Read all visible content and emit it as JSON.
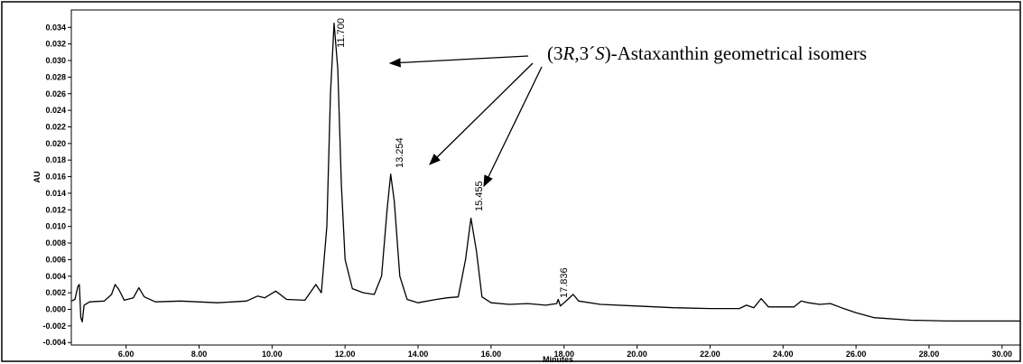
{
  "chart_data": {
    "type": "line",
    "xlabel": "Minutes",
    "ylabel": "AU",
    "annotation": [
      "(3",
      "R",
      ",3´",
      "S",
      ")-Astaxanthin geometrical isomers"
    ],
    "peak_labels": [
      "11.700",
      "13.254",
      "15.455",
      "17.836"
    ],
    "color": "#000000",
    "xlim": [
      4.5,
      30.5
    ],
    "ylim": [
      -0.0043,
      0.0361
    ],
    "xticks": [
      {
        "value": 6,
        "label": "6.00"
      },
      {
        "value": 8,
        "label": "8.00"
      },
      {
        "value": 10,
        "label": "10.00"
      },
      {
        "value": 12,
        "label": "12.00"
      },
      {
        "value": 14,
        "label": "14.00"
      },
      {
        "value": 16,
        "label": "16.00"
      },
      {
        "value": 18,
        "label": "18.00"
      },
      {
        "value": 20,
        "label": "20.00"
      },
      {
        "value": 22,
        "label": "22.00"
      },
      {
        "value": 24,
        "label": "24.00"
      },
      {
        "value": 26,
        "label": "26.00"
      },
      {
        "value": 28,
        "label": "28.00"
      },
      {
        "value": 30,
        "label": "30.00"
      }
    ],
    "yticks": [
      -0.004,
      -0.002,
      {
        "value": 0,
        "label": "0.000"
      },
      0.002,
      0.004,
      0.006,
      0.008,
      {
        "value": 0.01,
        "label": "0.010"
      },
      0.012,
      0.014,
      0.016,
      0.018,
      {
        "value": 0.02,
        "label": "0.020"
      },
      0.022,
      0.024,
      0.026,
      0.028,
      {
        "value": 0.03,
        "label": "0.030"
      },
      0.032,
      0.034
    ],
    "x": [
      4.5,
      4.6,
      4.68,
      4.72,
      4.76,
      4.8,
      4.85,
      5.0,
      5.4,
      5.6,
      5.7,
      5.8,
      5.95,
      6.2,
      6.35,
      6.5,
      6.8,
      7.5,
      8.5,
      9.3,
      9.6,
      9.8,
      10.1,
      10.4,
      10.9,
      11.2,
      11.35,
      11.5,
      11.6,
      11.7,
      11.8,
      11.9,
      12.0,
      12.2,
      12.5,
      12.8,
      13.0,
      13.15,
      13.25,
      13.35,
      13.5,
      13.7,
      14.0,
      14.5,
      14.8,
      15.1,
      15.3,
      15.45,
      15.6,
      15.75,
      16.0,
      16.5,
      17.0,
      17.5,
      17.8,
      17.84,
      17.9,
      18.1,
      18.25,
      18.4,
      19.0,
      20.0,
      21.0,
      22.0,
      22.8,
      23.0,
      23.2,
      23.4,
      23.6,
      24.3,
      24.5,
      24.7,
      25.0,
      25.3,
      25.6,
      26.0,
      26.5,
      27.5,
      28.5,
      30.5
    ],
    "values": [
      0.001,
      0.0012,
      0.0028,
      0.003,
      -0.001,
      -0.0015,
      0.0005,
      0.0009,
      0.001,
      0.0018,
      0.003,
      0.0024,
      0.0011,
      0.0014,
      0.0026,
      0.0015,
      0.0009,
      0.001,
      0.0008,
      0.001,
      0.0016,
      0.0014,
      0.0022,
      0.0012,
      0.0011,
      0.003,
      0.002,
      0.01,
      0.026,
      0.0345,
      0.029,
      0.015,
      0.006,
      0.0025,
      0.002,
      0.0018,
      0.004,
      0.012,
      0.0163,
      0.013,
      0.004,
      0.0012,
      0.0008,
      0.0012,
      0.0014,
      0.0015,
      0.006,
      0.011,
      0.007,
      0.0015,
      0.0008,
      0.0006,
      0.0007,
      0.0005,
      0.0007,
      0.0012,
      0.0004,
      0.0012,
      0.0018,
      0.001,
      0.0006,
      0.0004,
      0.0002,
      0.0001,
      0.0001,
      0.0005,
      0.0002,
      0.0013,
      0.0003,
      0.0003,
      0.001,
      0.0008,
      0.0006,
      0.0007,
      0.0002,
      -0.0004,
      -0.001,
      -0.0013,
      -0.0014,
      -0.0014
    ]
  }
}
